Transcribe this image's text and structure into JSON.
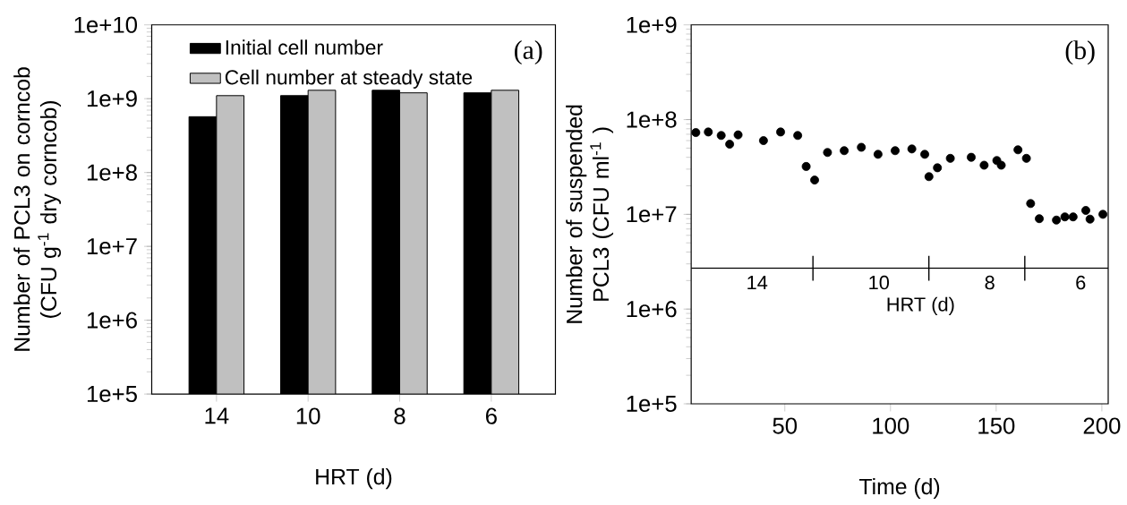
{
  "chart_data": [
    {
      "type": "bar",
      "xlabel": "HRT (d)",
      "ylabel": "Number of PCL3 on corncob (CFU g$^{-1}$ dry corncob)",
      "categories": [
        "14",
        "10",
        "8",
        "6"
      ],
      "series": [
        {
          "name": "Initial cell number",
          "color": "#000000",
          "values": [
            570000000.0,
            1100000000.0,
            1300000000.0,
            1200000000.0
          ]
        },
        {
          "name": "Cell number at steady state",
          "color": "#c0c0c0",
          "values": [
            1100000000.0,
            1300000000.0,
            1200000000.0,
            1300000000.0
          ]
        }
      ],
      "log": "y",
      "ylim": [
        100000.0,
        10000000000.0
      ],
      "yticks": [
        {
          "value": 100000.0,
          "label": "1e+5"
        },
        {
          "value": 1000000.0,
          "label": "1e+6"
        },
        {
          "value": 10000000.0,
          "label": "1e+7"
        },
        {
          "value": 100000000.0,
          "label": "1e+8"
        },
        {
          "value": 1000000000.0,
          "label": "1e+9"
        },
        {
          "value": 10000000000.0,
          "label": "1e+10"
        }
      ],
      "legend": "top left",
      "annotations": [
        "(a)"
      ]
    },
    {
      "type": "scatter",
      "xlabel": "Time (d)",
      "ylabel": "Number of suspended PCL3 (CFU ml$^{-1}$ )",
      "x": [
        7.9,
        13.8,
        19.9,
        23.9,
        27.9,
        39.9,
        48,
        56.1,
        60.1,
        64.1,
        70.2,
        78.1,
        86.2,
        94.1,
        102.2,
        110.1,
        116.2,
        118.2,
        122.2,
        128.3,
        138.2,
        144.3,
        150.3,
        152.4,
        160.3,
        164.3,
        166.3,
        170.4,
        178.5,
        182.5,
        186.4,
        192.4,
        194.4,
        200.5
      ],
      "series": [
        {
          "color": "#000000",
          "values": [
            73000000.0,
            74000000.0,
            68000000.0,
            55000000.0,
            69000000.0,
            60000000.0,
            74000000.0,
            68000000.0,
            32000000.0,
            23000000.0,
            45000000.0,
            47000000.0,
            51000000.0,
            43000000.0,
            47000000.0,
            49000000.0,
            43000000.0,
            25000000.0,
            31000000.0,
            39000000.0,
            40000000.0,
            33000000.0,
            37000000.0,
            33000000.0,
            48000000.0,
            39000000.0,
            13000000.0,
            9000000.0,
            8700000.0,
            9400000.0,
            9400000.0,
            11000000.0,
            8900000.0,
            10000000.0
          ]
        }
      ],
      "marker": "circle",
      "log": "y",
      "xlim": [
        5.7,
        203
      ],
      "xticks": [
        50,
        100,
        150,
        200
      ],
      "ylim": [
        100000.0,
        1000000000.0
      ],
      "yticks": [
        {
          "value": 100000.0,
          "label": "1e+5"
        },
        {
          "value": 1000000.0,
          "label": "1e+6"
        },
        {
          "value": 10000000.0,
          "label": "1e+7"
        },
        {
          "value": 100000000.0,
          "label": "1e+8"
        },
        {
          "value": 1000000000.0,
          "label": "1e+9"
        }
      ],
      "ref_lines": [
        {
          "axis": "y",
          "value": 2700000.0
        }
      ],
      "annotations": [
        "(b)",
        "14",
        "10",
        "8",
        "6",
        "HRT (d)"
      ]
    }
  ]
}
